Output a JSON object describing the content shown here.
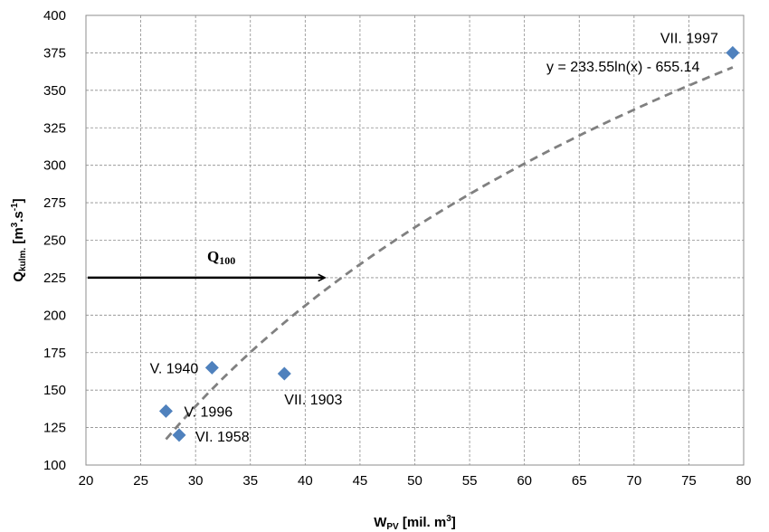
{
  "chart_data": {
    "type": "scatter",
    "xlim": [
      20,
      80
    ],
    "ylim": [
      100,
      400
    ],
    "xticks": [
      20,
      25,
      30,
      35,
      40,
      45,
      50,
      55,
      60,
      65,
      70,
      75,
      80
    ],
    "yticks": [
      100,
      125,
      150,
      175,
      200,
      225,
      250,
      275,
      300,
      325,
      350,
      375,
      400
    ],
    "grid": "dashed",
    "xlabel": {
      "main": "W",
      "sub": "PV",
      "unit": " [mil. m",
      "sup": "3",
      "end": "]"
    },
    "ylabel": {
      "main": "Q",
      "sub": "kulm.",
      "unit": " [m",
      "sup1": "3",
      "mid": ".s",
      "sup2": "-1",
      "end": "]"
    },
    "points": [
      {
        "x": 27.3,
        "y": 136,
        "label": "V. 1996"
      },
      {
        "x": 28.5,
        "y": 120,
        "label": "VI. 1958"
      },
      {
        "x": 31.5,
        "y": 165,
        "label": "V. 1940"
      },
      {
        "x": 38.1,
        "y": 161,
        "label": "VII. 1903"
      },
      {
        "x": 79,
        "y": 375,
        "label": "VII. 1997"
      }
    ],
    "marker_color": "#4F81BD",
    "trendline": {
      "type": "logarithmic",
      "a": 233.55,
      "b": -655.14,
      "x_range": [
        27.3,
        79
      ],
      "equation": "y = 233.55ln(x) - 655.14",
      "color": "#808080"
    },
    "annotation": {
      "label_main": "Q",
      "label_sub": "100",
      "y": 225,
      "x_start": 20,
      "x_end": 41
    }
  }
}
